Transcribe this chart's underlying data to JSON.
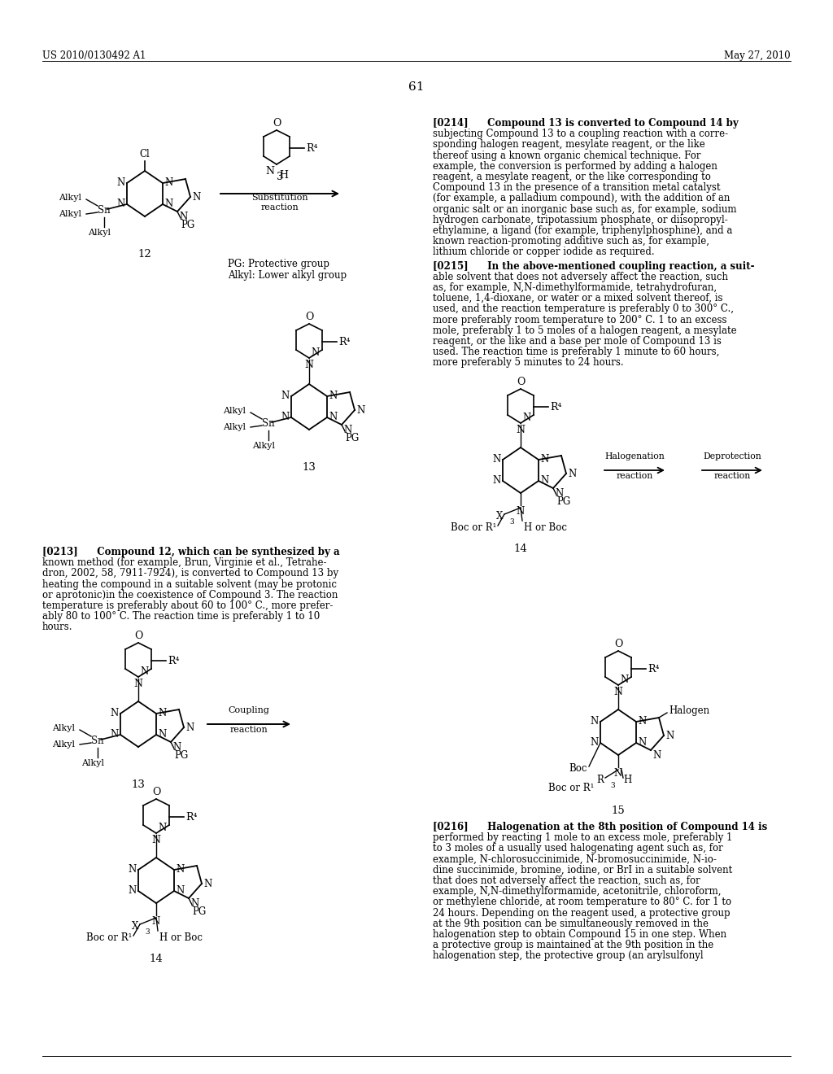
{
  "bg_color": "#ffffff",
  "header_left": "US 2010/0130492 A1",
  "header_right": "May 27, 2010",
  "page_number": "61",
  "p0214_lines": [
    "[0214]  Compound 13 is converted to Compound 14 by",
    "subjecting Compound 13 to a coupling reaction with a corre-",
    "sponding halogen reagent, mesylate reagent, or the like",
    "thereof using a known organic chemical technique. For",
    "example, the conversion is performed by adding a halogen",
    "reagent, a mesylate reagent, or the like corresponding to",
    "Compound 13 in the presence of a transition metal catalyst",
    "(for example, a palladium compound), with the addition of an",
    "organic salt or an inorganic base such as, for example, sodium",
    "hydrogen carbonate, tripotassium phosphate, or diisopropyl-",
    "ethylamine, a ligand (for example, triphenylphosphine), and a",
    "known reaction-promoting additive such as, for example,",
    "lithium chloride or copper iodide as required."
  ],
  "p0215_lines": [
    "[0215]  In the above-mentioned coupling reaction, a suit-",
    "able solvent that does not adversely affect the reaction, such",
    "as, for example, N,N-dimethylformamide, tetrahydrofuran,",
    "toluene, 1,4-dioxane, or water or a mixed solvent thereof, is",
    "used, and the reaction temperature is preferably 0 to 300° C.,",
    "more preferably room temperature to 200° C. 1 to an excess",
    "mole, preferably 1 to 5 moles of a halogen reagent, a mesylate",
    "reagent, or the like and a base per mole of Compound 13 is",
    "used. The reaction time is preferably 1 minute to 60 hours,",
    "more preferably 5 minutes to 24 hours."
  ],
  "p0213_lines": [
    "[0213]  Compound 12, which can be synthesized by a",
    "known method (for example, Brun, Virginie et al., Tetrahe-",
    "dron, 2002, 58, 7911-7924), is converted to Compound 13 by",
    "heating the compound in a suitable solvent (may be protonic",
    "or aprotonic)in the coexistence of Compound 3. The reaction",
    "temperature is preferably about 60 to 100° C., more prefer-",
    "ably 80 to 100° C. The reaction time is preferably 1 to 10",
    "hours."
  ],
  "p0216_lines": [
    "[0216]  Halogenation at the 8th position of Compound 14 is",
    "performed by reacting 1 mole to an excess mole, preferably 1",
    "to 3 moles of a usually used halogenating agent such as, for",
    "example, N-chlorosuccinimide, N-bromosuccinimide, N-io-",
    "dine succinimide, bromine, iodine, or BrI in a suitable solvent",
    "that does not adversely affect the reaction, such as, for",
    "example, N,N-dimethylformamide, acetonitrile, chloroform,",
    "or methylene chloride, at room temperature to 80° C. for 1 to",
    "24 hours. Depending on the reagent used, a protective group",
    "at the 9th position can be simultaneously removed in the",
    "halogenation step to obtain Compound 15 in one step. When",
    "a protective group is maintained at the 9th position in the",
    "halogenation step, the protective group (an arylsulfonyl"
  ]
}
